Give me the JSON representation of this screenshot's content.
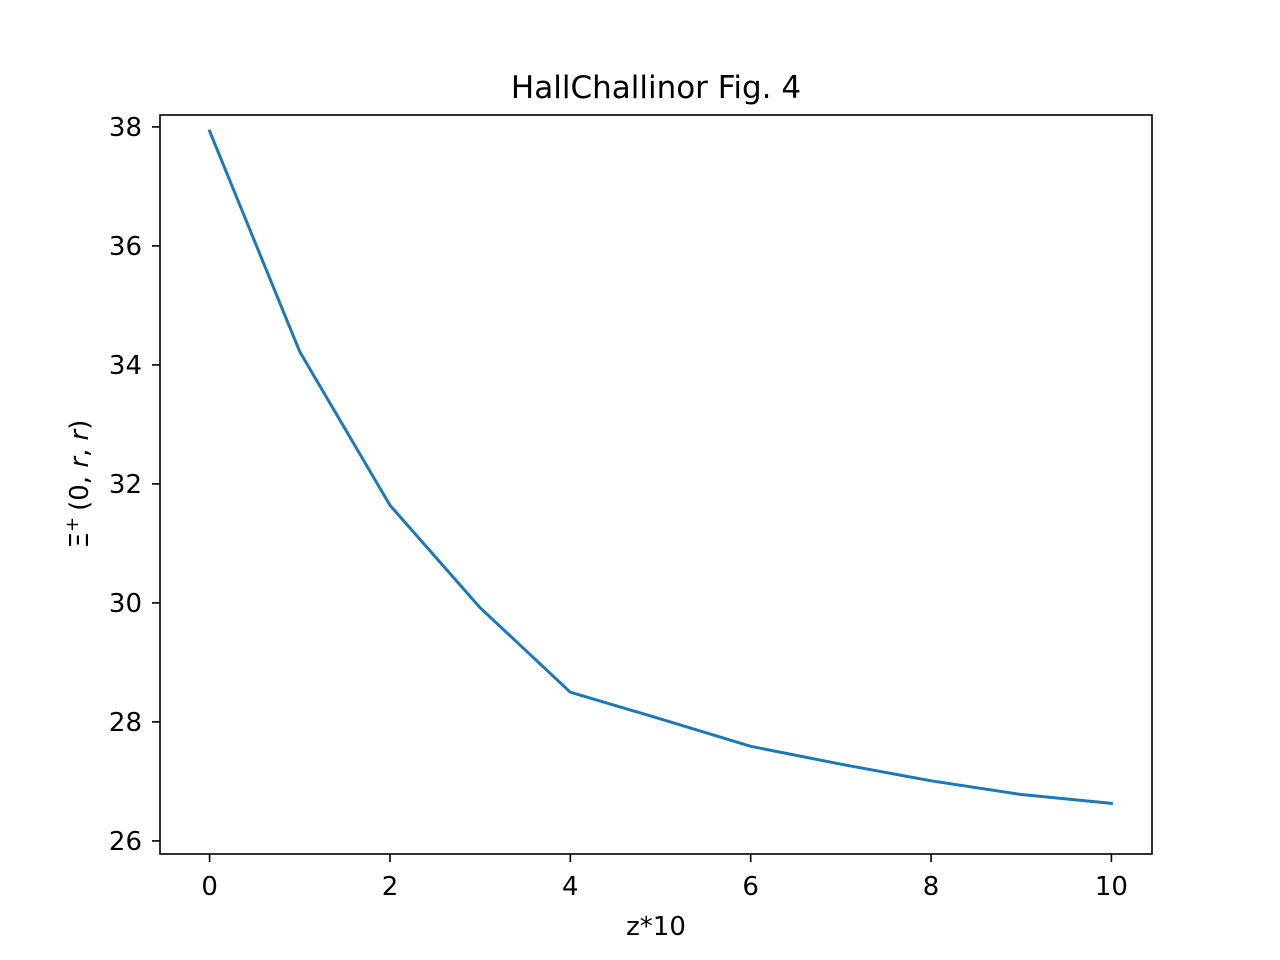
{
  "chart_data": {
    "type": "line",
    "title": "HallChallinor Fig. 4",
    "xlabel": "z*10",
    "ylabel_parts": [
      "Ξ",
      "+",
      "(0, ",
      "r",
      ", ",
      "r",
      ")"
    ],
    "x": [
      0,
      1,
      2,
      3,
      4,
      5,
      6,
      7,
      8,
      9,
      10
    ],
    "series": [
      {
        "values": [
          37.93,
          34.22,
          31.64,
          29.92,
          28.5,
          28.05,
          27.59,
          27.29,
          27.01,
          26.78,
          26.63
        ],
        "color": "#1f77b4"
      }
    ],
    "xlim": [
      -0.55,
      10.45
    ],
    "ylim": [
      25.78,
      38.2
    ],
    "xticks": [
      0,
      2,
      4,
      6,
      8,
      10
    ],
    "yticks": [
      26,
      28,
      30,
      32,
      34,
      36,
      38
    ],
    "grid": false,
    "legend": "none"
  }
}
